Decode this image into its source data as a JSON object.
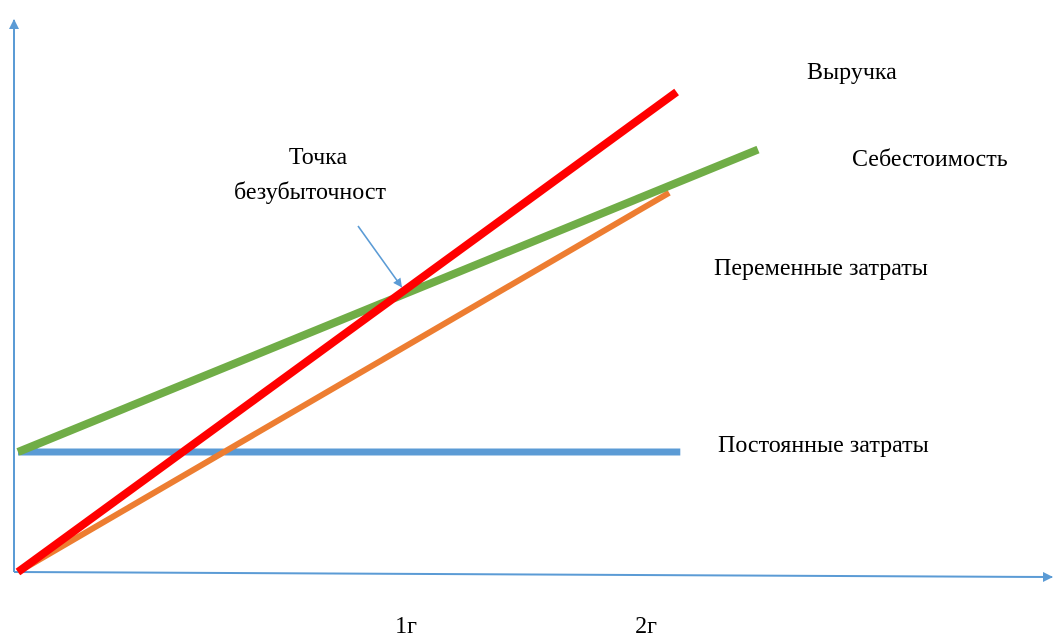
{
  "chart_data": {
    "type": "line",
    "title": "",
    "xlabel": "",
    "ylabel": "",
    "grid": false,
    "legend": "none",
    "xlim": [
      0,
      2.8
    ],
    "ylim": [
      0,
      5.5
    ],
    "x_ticks": [
      {
        "value": 1,
        "label": "1г"
      },
      {
        "value": 2,
        "label": "2г"
      }
    ],
    "series": [
      {
        "name": "Выручка",
        "color": "#ff0000",
        "points": [
          [
            0,
            0
          ],
          [
            1.78,
            5.0
          ]
        ]
      },
      {
        "name": "Себестоимость",
        "color": "#70ad47",
        "points": [
          [
            0,
            1.25
          ],
          [
            2.0,
            4.4
          ]
        ]
      },
      {
        "name": "Переменные затраты",
        "color": "#ed7d31",
        "points": [
          [
            0,
            0
          ],
          [
            1.76,
            3.95
          ]
        ]
      },
      {
        "name": "Постоянные затраты",
        "color": "#5b9bd5",
        "points": [
          [
            0,
            1.25
          ],
          [
            1.79,
            1.25
          ]
        ]
      }
    ],
    "annotations": [
      {
        "text_lines": [
          "Точка",
          "безубыточност"
        ],
        "target": [
          1.05,
          2.95
        ],
        "arrow_color": "#5b9bd5"
      }
    ],
    "axis_color": "#5b9bd5"
  }
}
